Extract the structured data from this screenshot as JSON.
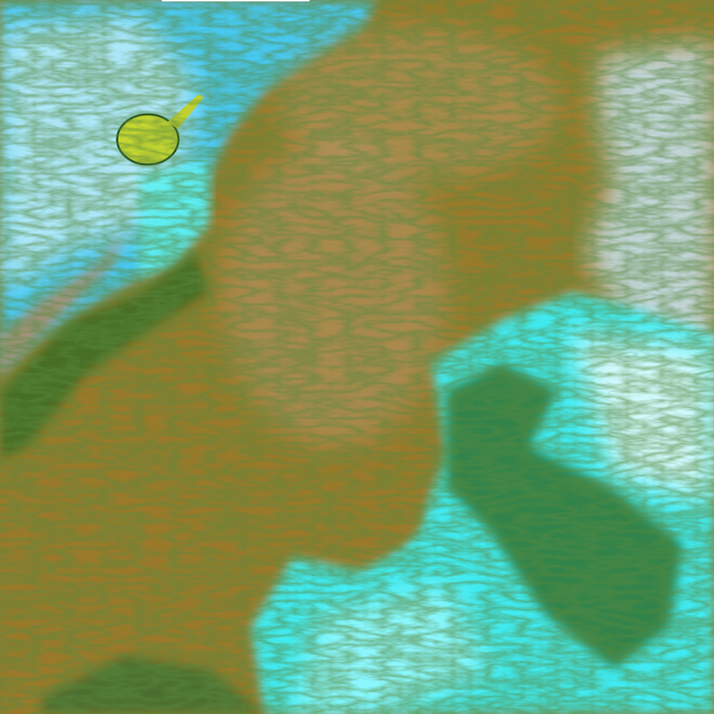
{
  "image": {
    "kind": "false-color satellite imagery",
    "colors": {
      "land": "#9a7a2a",
      "land_light": "#b09060",
      "vegetation": "#2f7a2a",
      "cloud_cyan": "#3fe8f0",
      "cloud_white": "#e8fbff",
      "water_blue": "#3aaee8",
      "lake": "#c8d830"
    }
  }
}
